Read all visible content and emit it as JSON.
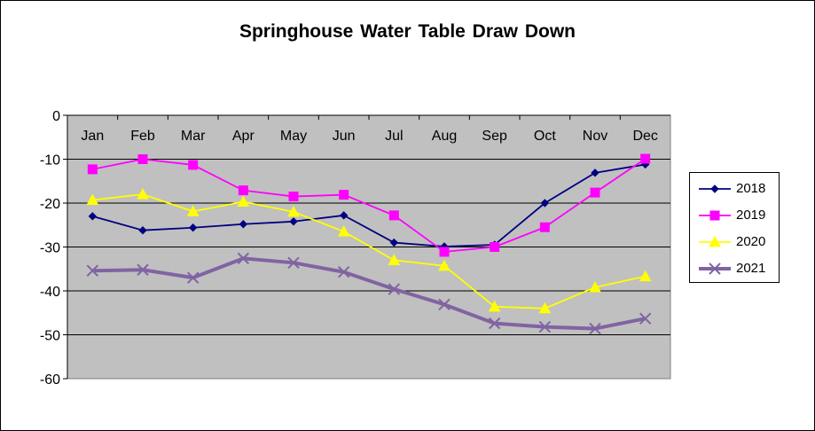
{
  "chart_data": {
    "type": "line",
    "title": "Springhouse  Water  Table Draw Down",
    "categories": [
      "Jan",
      "Feb",
      "Mar",
      "Apr",
      "May",
      "Jun",
      "Jul",
      "Aug",
      "Sep",
      "Oct",
      "Nov",
      "Dec"
    ],
    "ylim": [
      -60,
      0
    ],
    "yticks": [
      "0",
      "-10",
      "-20",
      "-30",
      "-40",
      "-50",
      "-60"
    ],
    "grid": true,
    "legend_position": "right",
    "plot_background": "#c0c0c0",
    "series": [
      {
        "name": "2018",
        "color": "#000080",
        "marker": "diamond",
        "values": [
          -23,
          -26.2,
          -25.6,
          -24.8,
          -24.2,
          -22.8,
          -29,
          -29.9,
          -29.5,
          -20,
          -13.1,
          -11.2
        ]
      },
      {
        "name": "2019",
        "color": "#ff00ff",
        "marker": "square",
        "values": [
          -12.3,
          -10,
          -11.3,
          -17.1,
          -18.5,
          -18.1,
          -22.8,
          -31.1,
          -30,
          -25.5,
          -17.6,
          -9.9
        ]
      },
      {
        "name": "2020",
        "color": "#ffff00",
        "marker": "triangle",
        "values": [
          -19.3,
          -18,
          -21.9,
          -19.7,
          -22,
          -26.5,
          -33,
          -34.3,
          -43.6,
          -44,
          -39.2,
          -36.7
        ]
      },
      {
        "name": "2021",
        "color": "#8064a2",
        "marker": "x",
        "values": [
          -35.4,
          -35.2,
          -37,
          -32.6,
          -33.6,
          -35.7,
          -39.6,
          -43.1,
          -47.4,
          -48.2,
          -48.6,
          -46.3
        ]
      }
    ]
  }
}
